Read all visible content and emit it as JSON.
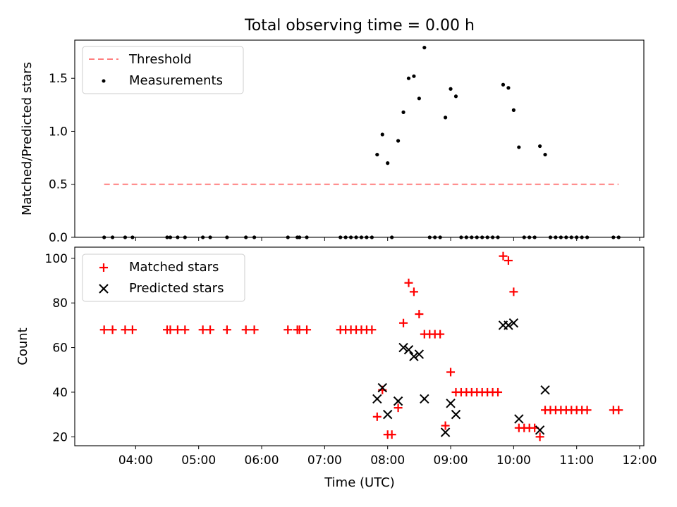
{
  "figure": {
    "title": "Total observing time = 0.00 h",
    "xlabel": "Time (UTC)"
  },
  "colors": {
    "threshold": "#ff7f7f",
    "measurements": "#000000",
    "matched": "#ff0000",
    "predicted": "#000000"
  },
  "chart_data": [
    {
      "type": "scatter",
      "panel": "top",
      "ylabel": "Matched/Predicted stars",
      "xlim": [
        "03:02",
        "12:04"
      ],
      "ylim": [
        0,
        1.86
      ],
      "yticks": [
        0.0,
        0.5,
        1.0,
        1.5
      ],
      "ytick_labels": [
        "0.0",
        "0.5",
        "1.0",
        "1.5"
      ],
      "legend_position": "upper-left",
      "series": [
        {
          "name": "Threshold",
          "style": "dashed-line",
          "points": [
            [
              "03:30",
              0.5
            ],
            [
              "11:40",
              0.5
            ]
          ]
        },
        {
          "name": "Measurements",
          "style": "dots",
          "points": [
            [
              "03:30",
              0.0
            ],
            [
              "03:38",
              0.0
            ],
            [
              "03:50",
              0.0
            ],
            [
              "03:57",
              0.0
            ],
            [
              "04:30",
              0.0
            ],
            [
              "04:33",
              0.0
            ],
            [
              "04:40",
              0.0
            ],
            [
              "04:47",
              0.0
            ],
            [
              "05:04",
              0.0
            ],
            [
              "05:11",
              0.0
            ],
            [
              "05:27",
              0.0
            ],
            [
              "05:45",
              0.0
            ],
            [
              "05:53",
              0.0
            ],
            [
              "06:25",
              0.0
            ],
            [
              "06:34",
              0.0
            ],
            [
              "06:36",
              0.0
            ],
            [
              "06:43",
              0.0
            ],
            [
              "07:15",
              0.0
            ],
            [
              "07:20",
              0.0
            ],
            [
              "07:25",
              0.0
            ],
            [
              "07:30",
              0.0
            ],
            [
              "07:35",
              0.0
            ],
            [
              "07:40",
              0.0
            ],
            [
              "07:45",
              0.0
            ],
            [
              "07:50",
              0.78
            ],
            [
              "07:55",
              0.97
            ],
            [
              "08:00",
              0.7
            ],
            [
              "08:04",
              0.0
            ],
            [
              "08:10",
              0.91
            ],
            [
              "08:15",
              1.18
            ],
            [
              "08:20",
              1.5
            ],
            [
              "08:25",
              1.52
            ],
            [
              "08:30",
              1.31
            ],
            [
              "08:35",
              1.79
            ],
            [
              "08:40",
              0.0
            ],
            [
              "08:45",
              0.0
            ],
            [
              "08:50",
              0.0
            ],
            [
              "08:55",
              1.13
            ],
            [
              "09:00",
              1.4
            ],
            [
              "09:05",
              1.33
            ],
            [
              "09:10",
              0.0
            ],
            [
              "09:15",
              0.0
            ],
            [
              "09:20",
              0.0
            ],
            [
              "09:25",
              0.0
            ],
            [
              "09:30",
              0.0
            ],
            [
              "09:35",
              0.0
            ],
            [
              "09:40",
              0.0
            ],
            [
              "09:45",
              0.0
            ],
            [
              "09:50",
              1.44
            ],
            [
              "09:55",
              1.41
            ],
            [
              "10:00",
              1.2
            ],
            [
              "10:05",
              0.85
            ],
            [
              "10:10",
              0.0
            ],
            [
              "10:15",
              0.0
            ],
            [
              "10:20",
              0.0
            ],
            [
              "10:25",
              0.86
            ],
            [
              "10:30",
              0.78
            ],
            [
              "10:35",
              0.0
            ],
            [
              "10:40",
              0.0
            ],
            [
              "10:45",
              0.0
            ],
            [
              "10:50",
              0.0
            ],
            [
              "10:55",
              0.0
            ],
            [
              "11:00",
              0.0
            ],
            [
              "11:05",
              0.0
            ],
            [
              "11:10",
              0.0
            ],
            [
              "11:35",
              0.0
            ],
            [
              "11:40",
              0.0
            ]
          ]
        }
      ]
    },
    {
      "type": "scatter",
      "panel": "bottom",
      "ylabel": "Count",
      "xlim": [
        "03:02",
        "12:04"
      ],
      "ylim": [
        16,
        105
      ],
      "yticks": [
        20,
        40,
        60,
        80,
        100
      ],
      "ytick_labels": [
        "20",
        "40",
        "60",
        "80",
        "100"
      ],
      "xticks": [
        "04:00",
        "05:00",
        "06:00",
        "07:00",
        "08:00",
        "09:00",
        "10:00",
        "11:00",
        "12:00"
      ],
      "legend_position": "upper-left",
      "series": [
        {
          "name": "Matched stars",
          "marker": "plus",
          "points": [
            [
              "03:30",
              68
            ],
            [
              "03:38",
              68
            ],
            [
              "03:50",
              68
            ],
            [
              "03:57",
              68
            ],
            [
              "04:30",
              68
            ],
            [
              "04:33",
              68
            ],
            [
              "04:40",
              68
            ],
            [
              "04:47",
              68
            ],
            [
              "05:04",
              68
            ],
            [
              "05:11",
              68
            ],
            [
              "05:27",
              68
            ],
            [
              "05:45",
              68
            ],
            [
              "05:53",
              68
            ],
            [
              "06:25",
              68
            ],
            [
              "06:34",
              68
            ],
            [
              "06:36",
              68
            ],
            [
              "06:43",
              68
            ],
            [
              "07:15",
              68
            ],
            [
              "07:20",
              68
            ],
            [
              "07:25",
              68
            ],
            [
              "07:30",
              68
            ],
            [
              "07:35",
              68
            ],
            [
              "07:40",
              68
            ],
            [
              "07:45",
              68
            ],
            [
              "07:50",
              29
            ],
            [
              "07:55",
              41
            ],
            [
              "08:00",
              21
            ],
            [
              "08:04",
              21
            ],
            [
              "08:10",
              33
            ],
            [
              "08:15",
              71
            ],
            [
              "08:20",
              89
            ],
            [
              "08:25",
              85
            ],
            [
              "08:30",
              75
            ],
            [
              "08:35",
              66
            ],
            [
              "08:40",
              66
            ],
            [
              "08:45",
              66
            ],
            [
              "08:50",
              66
            ],
            [
              "08:55",
              25
            ],
            [
              "09:00",
              49
            ],
            [
              "09:05",
              40
            ],
            [
              "09:10",
              40
            ],
            [
              "09:15",
              40
            ],
            [
              "09:20",
              40
            ],
            [
              "09:25",
              40
            ],
            [
              "09:30",
              40
            ],
            [
              "09:35",
              40
            ],
            [
              "09:40",
              40
            ],
            [
              "09:45",
              40
            ],
            [
              "09:50",
              101
            ],
            [
              "09:55",
              99
            ],
            [
              "10:00",
              85
            ],
            [
              "10:05",
              24
            ],
            [
              "10:10",
              24
            ],
            [
              "10:15",
              24
            ],
            [
              "10:20",
              24
            ],
            [
              "10:25",
              20
            ],
            [
              "10:30",
              32
            ],
            [
              "10:35",
              32
            ],
            [
              "10:40",
              32
            ],
            [
              "10:45",
              32
            ],
            [
              "10:50",
              32
            ],
            [
              "10:55",
              32
            ],
            [
              "11:00",
              32
            ],
            [
              "11:05",
              32
            ],
            [
              "11:10",
              32
            ],
            [
              "11:35",
              32
            ],
            [
              "11:40",
              32
            ]
          ]
        },
        {
          "name": "Predicted stars",
          "marker": "x",
          "points": [
            [
              "07:50",
              37
            ],
            [
              "07:55",
              42
            ],
            [
              "08:00",
              30
            ],
            [
              "08:10",
              36
            ],
            [
              "08:15",
              60
            ],
            [
              "08:20",
              59
            ],
            [
              "08:25",
              56
            ],
            [
              "08:30",
              57
            ],
            [
              "08:35",
              37
            ],
            [
              "08:55",
              22
            ],
            [
              "09:00",
              35
            ],
            [
              "09:05",
              30
            ],
            [
              "09:50",
              70
            ],
            [
              "09:55",
              70
            ],
            [
              "10:00",
              71
            ],
            [
              "10:05",
              28
            ],
            [
              "10:25",
              23
            ],
            [
              "10:30",
              41
            ]
          ]
        }
      ]
    }
  ]
}
